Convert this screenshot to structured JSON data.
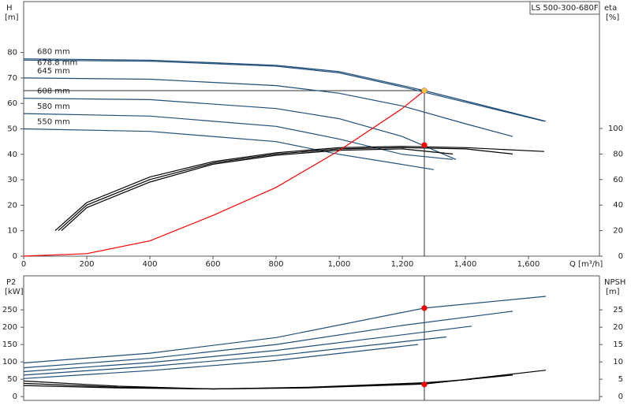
{
  "chart_data": [
    {
      "type": "line",
      "title": "LS 500-300-680F",
      "y_label": "H",
      "y_unit": "[m]",
      "y2_label": "eta",
      "y2_unit": "[%]",
      "x_label": "Q [m³/h]",
      "xlim": [
        0,
        1825
      ],
      "ylim": [
        0,
        100
      ],
      "y2lim": [
        0,
        199.4
      ],
      "xticks": [
        0,
        200,
        400,
        600,
        800,
        {
          "value": 1000,
          "label": "1,000"
        },
        {
          "value": 1200,
          "label": "1,200"
        },
        {
          "value": 1400,
          "label": "1,400"
        },
        {
          "value": 1600,
          "label": "1,600"
        }
      ],
      "yticks": [
        0,
        10,
        20,
        30,
        40,
        50,
        60,
        70,
        80
      ],
      "y2ticks": [
        0,
        20,
        40,
        60,
        80,
        100
      ],
      "series": [
        {
          "name": "680 mm",
          "color": "#1f4e79",
          "x": [
            0,
            400,
            800,
            1000,
            1200,
            1270,
            1400,
            1655
          ],
          "values": [
            77.5,
            77,
            75,
            72.5,
            67,
            65,
            61,
            53
          ]
        },
        {
          "name": "678.8 mm",
          "color": "#1f4e79",
          "x": [
            0,
            400,
            800,
            1000,
            1200,
            1400,
            1650
          ],
          "values": [
            77,
            76.6,
            74.6,
            72,
            66.5,
            60.5,
            53
          ]
        },
        {
          "name": "645 mm",
          "color": "#1f4e79",
          "x": [
            0,
            400,
            800,
            1000,
            1200,
            1400,
            1550
          ],
          "values": [
            70,
            69.5,
            67,
            64,
            59,
            52,
            47
          ]
        },
        {
          "name": "608 mm",
          "color": "#1f4e79",
          "x": [
            0,
            400,
            800,
            1000,
            1200,
            1370
          ],
          "values": [
            62,
            61.5,
            58,
            54,
            47,
            38
          ]
        },
        {
          "name": "580 mm",
          "color": "#1f4e79",
          "x": [
            0,
            400,
            800,
            1000,
            1200,
            1360
          ],
          "values": [
            56,
            55,
            51,
            46,
            40,
            38
          ]
        },
        {
          "name": "550 mm",
          "color": "#1f4e79",
          "x": [
            0,
            400,
            800,
            1000,
            1200,
            1300
          ],
          "values": [
            50,
            49,
            45,
            40,
            36,
            34
          ]
        },
        {
          "color": "#000000",
          "axis": "y2",
          "x": [
            100,
            200,
            400,
            600,
            800,
            1000,
            1200,
            1400,
            1650
          ],
          "values": [
            20,
            42,
            62,
            74,
            81,
            85,
            86,
            85,
            82
          ]
        },
        {
          "color": "#000000",
          "axis": "y2",
          "x": [
            110,
            200,
            400,
            600,
            800,
            1000,
            1200,
            1400,
            1550
          ],
          "values": [
            20,
            40,
            60,
            73,
            80,
            84,
            85,
            84,
            80
          ]
        },
        {
          "color": "#000000",
          "axis": "y2",
          "x": [
            120,
            200,
            400,
            600,
            800,
            1000,
            1200,
            1360
          ],
          "values": [
            20,
            38,
            58,
            72,
            79,
            83,
            84,
            80
          ]
        },
        {
          "color": "#ff0000",
          "x": [
            0,
            200,
            400,
            600,
            800,
            1000,
            1200,
            1270
          ],
          "values": [
            0,
            1,
            6,
            16,
            27,
            41.5,
            58,
            65
          ]
        }
      ],
      "markers": [
        {
          "x": 1270,
          "y": 65,
          "color": "#f5c542"
        },
        {
          "x": 1270,
          "y": 87,
          "axis": "y2",
          "color": "#ff0000"
        }
      ]
    },
    {
      "type": "line",
      "y_label": "P2",
      "y_unit": "[kW]",
      "y2_label": "NPSH",
      "y2_unit": "[m]",
      "xlim": [
        0,
        1825
      ],
      "ylim": [
        -11,
        348
      ],
      "y2lim": [
        -1.1,
        34.8
      ],
      "yticks": [
        0,
        50,
        100,
        150,
        200,
        250
      ],
      "y2ticks": [
        0,
        5,
        10,
        15,
        20,
        25
      ],
      "series": [
        {
          "color": "#1f4e79",
          "x": [
            0,
            400,
            800,
            1270,
            1655
          ],
          "values": [
            97,
            125,
            170,
            255,
            289
          ]
        },
        {
          "color": "#1f4e79",
          "x": [
            0,
            400,
            800,
            1200,
            1550
          ],
          "values": [
            83,
            110,
            150,
            205,
            246
          ]
        },
        {
          "color": "#1f4e79",
          "x": [
            0,
            400,
            800,
            1200,
            1420
          ],
          "values": [
            72,
            98,
            133,
            178,
            203
          ]
        },
        {
          "color": "#1f4e79",
          "x": [
            0,
            400,
            800,
            1200,
            1340
          ],
          "values": [
            62,
            87,
            118,
            158,
            172
          ]
        },
        {
          "color": "#1f4e79",
          "x": [
            0,
            400,
            800,
            1250
          ],
          "values": [
            52,
            75,
            104,
            150
          ]
        },
        {
          "color": "#000000",
          "axis": "y2",
          "x": [
            0,
            300,
            600,
            900,
            1270,
            1655
          ],
          "values": [
            4.5,
            3,
            2.2,
            2.5,
            3.6,
            7.6
          ]
        },
        {
          "color": "#000000",
          "axis": "y2",
          "x": [
            0,
            300,
            600,
            900,
            1270,
            1550
          ],
          "values": [
            3.8,
            2.7,
            2.2,
            2.6,
            3.7,
            6.2
          ]
        },
        {
          "color": "#000000",
          "axis": "y2",
          "x": [
            0,
            300,
            600,
            900,
            1270,
            1420
          ],
          "values": [
            3.2,
            2.5,
            2.2,
            2.7,
            4,
            5
          ]
        }
      ],
      "markers": [
        {
          "x": 1270,
          "y": 255,
          "color": "#ff0000"
        },
        {
          "x": 1270,
          "y": 3.5,
          "axis": "y2",
          "color": "#ff0000"
        }
      ]
    }
  ]
}
